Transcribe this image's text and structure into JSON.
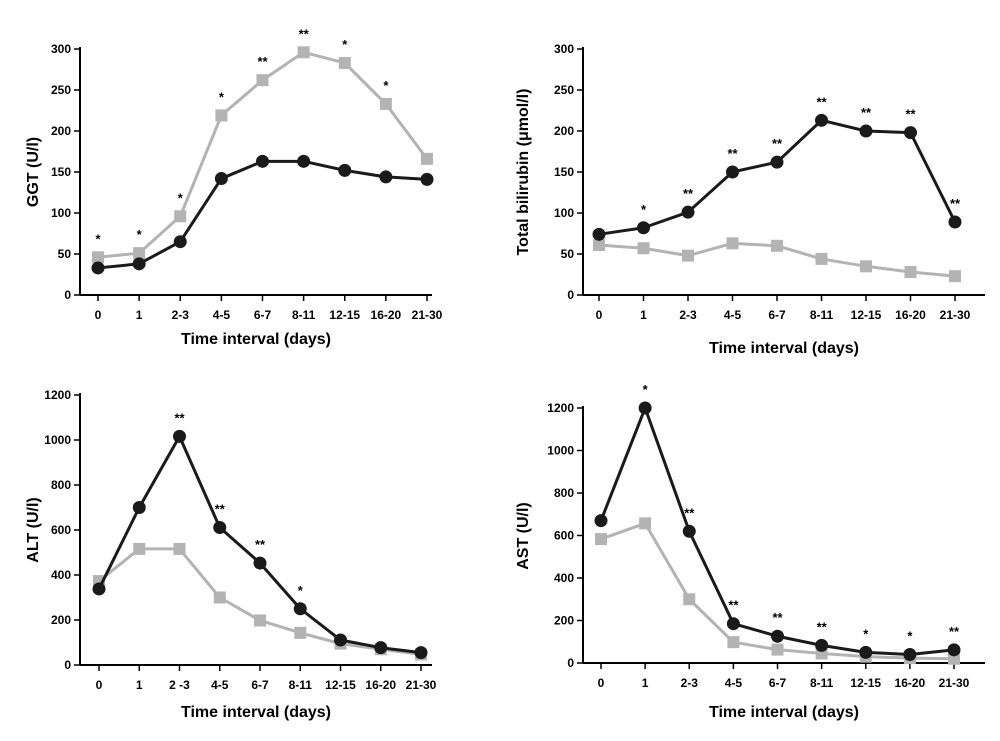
{
  "chart_data": [
    {
      "type": "line",
      "title": "",
      "xlabel": "Time interval (days)",
      "ylabel": "GGT (U/l)",
      "categories": [
        "0",
        "1",
        "2-3",
        "4-5",
        "6-7",
        "8-11",
        "12-15",
        "16-20",
        "21-30"
      ],
      "yticks": [
        "0",
        "50",
        "100",
        "150",
        "200",
        "250",
        "300"
      ],
      "ylim": [
        0,
        300
      ],
      "grid": false,
      "series": [
        {
          "values": [
            46,
            51,
            96,
            219,
            262,
            296,
            283,
            233,
            166
          ],
          "color": "#b3b3b3",
          "marker": "square"
        },
        {
          "values": [
            33,
            38,
            65,
            142,
            163,
            163,
            152,
            144,
            141
          ],
          "color": "#1a1a1a",
          "marker": "circle"
        }
      ],
      "annotations": [
        "*",
        "*",
        "*",
        "*",
        "**",
        "**",
        "*",
        "*",
        ""
      ]
    },
    {
      "type": "line",
      "title": "",
      "xlabel": "Time interval (days)",
      "ylabel": "Total bilirubin (μmol/l)",
      "categories": [
        "0",
        "1",
        "2-3",
        "4-5",
        "6-7",
        "8-11",
        "12-15",
        "16-20",
        "21-30"
      ],
      "yticks": [
        "0",
        "50",
        "100",
        "150",
        "200",
        "250",
        "300"
      ],
      "ylim": [
        0,
        300
      ],
      "grid": false,
      "series": [
        {
          "values": [
            61,
            57,
            48,
            63,
            60,
            44,
            35,
            28,
            23
          ],
          "color": "#b3b3b3",
          "marker": "square"
        },
        {
          "values": [
            74,
            82,
            101,
            150,
            162,
            213,
            200,
            198,
            89
          ],
          "color": "#1a1a1a",
          "marker": "circle"
        }
      ],
      "annotations": [
        "",
        "*",
        "**",
        "**",
        "**",
        "**",
        "**",
        "**",
        "**"
      ]
    },
    {
      "type": "line",
      "title": "",
      "xlabel": "Time interval (days)",
      "ylabel": "ALT (U/l)",
      "categories": [
        "0",
        "1",
        "2 -3",
        "4-5",
        "6-7",
        "8-11",
        "12-15",
        "16-20",
        "21-30"
      ],
      "yticks": [
        "0",
        "200",
        "400",
        "600",
        "800",
        "1000",
        "1200"
      ],
      "ylim": [
        0,
        1200
      ],
      "grid": false,
      "series": [
        {
          "values": [
            373,
            516,
            516,
            300,
            198,
            143,
            95,
            70,
            47
          ],
          "color": "#b3b3b3",
          "marker": "square"
        },
        {
          "values": [
            338,
            700,
            1016,
            611,
            453,
            250,
            111,
            77,
            55
          ],
          "color": "#1a1a1a",
          "marker": "circle"
        }
      ],
      "annotations": [
        "",
        "",
        "**",
        "**",
        "**",
        "*",
        "",
        "",
        ""
      ]
    },
    {
      "type": "line",
      "title": "",
      "xlabel": "Time interval (days)",
      "ylabel": "AST (U/l)",
      "categories": [
        "0",
        "1",
        "2-3",
        "4-5",
        "6-7",
        "8-11",
        "12-15",
        "16-20",
        "21-30"
      ],
      "yticks": [
        "0",
        "200",
        "400",
        "600",
        "800",
        "1000",
        "1200"
      ],
      "ylim": [
        0,
        1200
      ],
      "grid": false,
      "series": [
        {
          "values": [
            583,
            657,
            300,
            98,
            63,
            45,
            30,
            23,
            20
          ],
          "color": "#b3b3b3",
          "marker": "square"
        },
        {
          "values": [
            670,
            1200,
            620,
            185,
            126,
            83,
            50,
            40,
            62
          ],
          "color": "#1a1a1a",
          "marker": "circle"
        }
      ],
      "annotations": [
        "",
        "*",
        "**",
        "**",
        "**",
        "**",
        "*",
        "*",
        "**"
      ]
    }
  ]
}
